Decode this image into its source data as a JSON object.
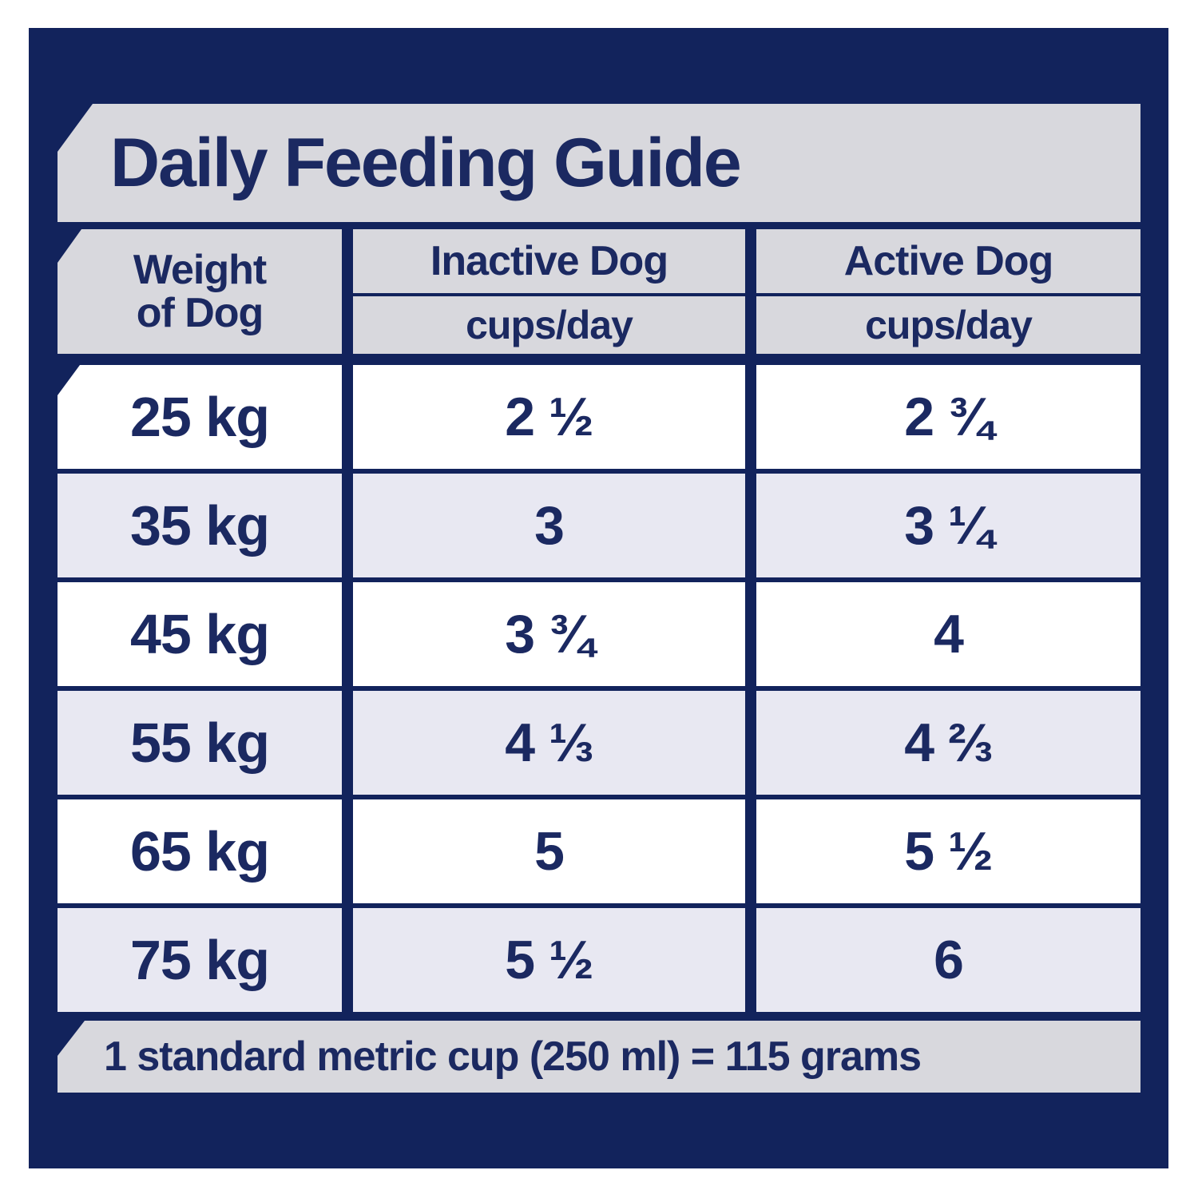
{
  "title": "Daily Feeding Guide",
  "table": {
    "columns": {
      "weight_line1": "Weight",
      "weight_line2": "of Dog",
      "inactive": "Inactive Dog",
      "active": "Active Dog",
      "unit": "cups/day"
    },
    "rows": [
      {
        "weight": "25 kg",
        "inactive": "2 ½",
        "active": "2 ¾"
      },
      {
        "weight": "35 kg",
        "inactive": "3",
        "active": "3 ¼"
      },
      {
        "weight": "45 kg",
        "inactive": "3 ¾",
        "active": "4"
      },
      {
        "weight": "55 kg",
        "inactive": "4 ⅓",
        "active": "4 ⅔"
      },
      {
        "weight": "65 kg",
        "inactive": "5",
        "active": "5 ½"
      },
      {
        "weight": "75 kg",
        "inactive": "5 ½",
        "active": "6"
      }
    ]
  },
  "footnote": "1 standard metric cup (250 ml) = 115 grams",
  "colors": {
    "navy": "#12235C",
    "band": "#D8D8DD",
    "row_alt": "#E8E8F2",
    "row": "#FFFFFF",
    "text": "#1B2961"
  }
}
